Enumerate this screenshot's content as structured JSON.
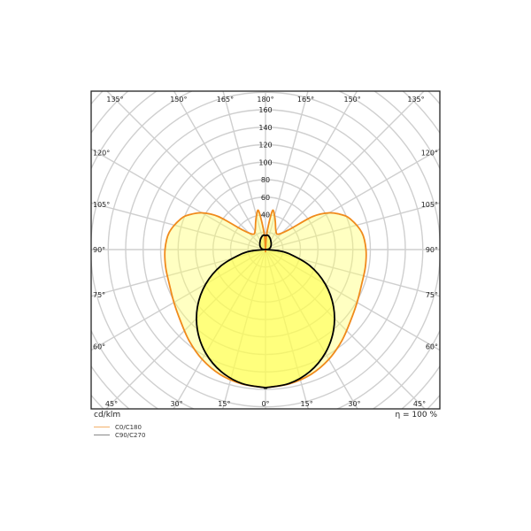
{
  "chart_data": {
    "type": "polar",
    "unit_label": "cd/klm",
    "efficiency_label": "η = 100 %",
    "radial_ticks": [
      40,
      60,
      80,
      100,
      120,
      140,
      160
    ],
    "radial_max": 160,
    "top_angle_labels": [
      "135°",
      "150°",
      "165°",
      "180°",
      "165°",
      "150°",
      "135°"
    ],
    "side_angle_labels": [
      "120°",
      "105°",
      "90°",
      "75°",
      "60°"
    ],
    "bottom_angle_labels": [
      "45°",
      "30°",
      "15°",
      "0°",
      "15°",
      "30°",
      "45°"
    ],
    "series": [
      {
        "name": "C0/C180",
        "color": "#f08a1c",
        "angles": [
          0,
          10,
          20,
          30,
          40,
          50,
          60,
          70,
          80,
          90,
          100,
          110,
          115,
          120,
          125,
          130,
          140,
          150,
          160,
          165,
          170,
          175,
          180
        ],
        "values": [
          158,
          156,
          152,
          145,
          136,
          127,
          121,
          117,
          116,
          115,
          112,
          103,
          95,
          84,
          66,
          36,
          23,
          24,
          33,
          40,
          45,
          20,
          0
        ]
      },
      {
        "name": "C90/C270",
        "color": "#000000",
        "angles": [
          0,
          10,
          20,
          30,
          40,
          50,
          60,
          70,
          80,
          85,
          90,
          95,
          100,
          110,
          120,
          130,
          140,
          150,
          160,
          170,
          175,
          180
        ],
        "values": [
          158,
          155.6,
          148.5,
          136.8,
          121,
          101.6,
          79,
          54,
          27.4,
          13.8,
          1,
          2.5,
          4,
          5.5,
          7,
          8.5,
          10,
          12,
          14.5,
          16.5,
          16.5,
          16
        ]
      }
    ]
  }
}
